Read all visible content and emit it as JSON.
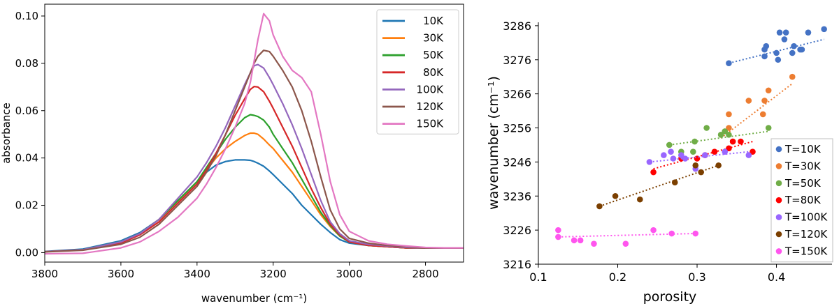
{
  "chart_data": [
    {
      "type": "line",
      "xlabel": "wavenumber (cm⁻¹)",
      "ylabel": "absorbance",
      "xlim": [
        3800,
        2700
      ],
      "ylim": [
        -0.004,
        0.105
      ],
      "x_reversed": true,
      "xticks": [
        3800,
        3600,
        3400,
        3200,
        3000,
        2800
      ],
      "yticks": [
        0.0,
        0.02,
        0.04,
        0.06,
        0.08,
        0.1
      ],
      "ytick_labels": [
        "0.00",
        "0.02",
        "0.04",
        "0.06",
        "0.08",
        "0.10"
      ],
      "legend_position": "top-right",
      "x": [
        3800,
        3700,
        3600,
        3550,
        3500,
        3450,
        3400,
        3375,
        3350,
        3325,
        3300,
        3275,
        3260,
        3250,
        3240,
        3225,
        3210,
        3200,
        3175,
        3150,
        3125,
        3100,
        3075,
        3050,
        3025,
        3000,
        2950,
        2900,
        2850,
        2800,
        2750,
        2700
      ],
      "series": [
        {
          "name": "10K",
          "color": "#1f77b4",
          "values": [
            0.0005,
            0.0015,
            0.005,
            0.0085,
            0.014,
            0.022,
            0.03,
            0.034,
            0.037,
            0.0385,
            0.0392,
            0.0392,
            0.039,
            0.0385,
            0.0378,
            0.0365,
            0.0345,
            0.033,
            0.029,
            0.025,
            0.02,
            0.016,
            0.012,
            0.0085,
            0.0055,
            0.004,
            0.003,
            0.0025,
            0.002,
            0.002,
            0.002,
            0.002
          ]
        },
        {
          "name": "30K",
          "color": "#ff7f0e",
          "values": [
            0.0004,
            0.0012,
            0.0045,
            0.008,
            0.014,
            0.022,
            0.03,
            0.035,
            0.04,
            0.044,
            0.047,
            0.0495,
            0.0505,
            0.0505,
            0.05,
            0.048,
            0.0455,
            0.044,
            0.039,
            0.034,
            0.028,
            0.022,
            0.016,
            0.011,
            0.007,
            0.0045,
            0.003,
            0.0025,
            0.002,
            0.002,
            0.002,
            0.002
          ]
        },
        {
          "name": "50K",
          "color": "#2ca02c",
          "values": [
            0.0004,
            0.0012,
            0.0045,
            0.008,
            0.014,
            0.022,
            0.03,
            0.036,
            0.042,
            0.048,
            0.053,
            0.057,
            0.0583,
            0.058,
            0.0575,
            0.056,
            0.053,
            0.05,
            0.044,
            0.038,
            0.031,
            0.024,
            0.017,
            0.0115,
            0.007,
            0.0045,
            0.003,
            0.0025,
            0.002,
            0.002,
            0.002,
            0.002
          ]
        },
        {
          "name": "80K",
          "color": "#d62728",
          "values": [
            0.0004,
            0.0012,
            0.004,
            0.0075,
            0.013,
            0.021,
            0.029,
            0.035,
            0.042,
            0.05,
            0.058,
            0.065,
            0.069,
            0.0702,
            0.07,
            0.068,
            0.064,
            0.061,
            0.053,
            0.045,
            0.036,
            0.027,
            0.019,
            0.012,
            0.0075,
            0.0045,
            0.003,
            0.0025,
            0.002,
            0.002,
            0.002,
            0.002
          ]
        },
        {
          "name": "100K",
          "color": "#9467bd",
          "values": [
            0.0004,
            0.0012,
            0.0045,
            0.008,
            0.014,
            0.023,
            0.032,
            0.038,
            0.045,
            0.053,
            0.062,
            0.071,
            0.076,
            0.079,
            0.0795,
            0.078,
            0.074,
            0.071,
            0.063,
            0.054,
            0.044,
            0.033,
            0.022,
            0.013,
            0.008,
            0.005,
            0.0035,
            0.0028,
            0.0022,
            0.002,
            0.002,
            0.002
          ]
        },
        {
          "name": "120K",
          "color": "#8c564b",
          "values": [
            0.0003,
            0.001,
            0.0035,
            0.0065,
            0.012,
            0.02,
            0.028,
            0.034,
            0.041,
            0.05,
            0.06,
            0.07,
            0.076,
            0.08,
            0.083,
            0.0855,
            0.085,
            0.083,
            0.077,
            0.07,
            0.06,
            0.047,
            0.032,
            0.018,
            0.01,
            0.006,
            0.004,
            0.003,
            0.0025,
            0.002,
            0.002,
            0.002
          ]
        },
        {
          "name": "150K",
          "color": "#e377c2",
          "values": [
            -0.0005,
            -0.0003,
            0.002,
            0.0045,
            0.009,
            0.015,
            0.023,
            0.029,
            0.036,
            0.044,
            0.053,
            0.063,
            0.072,
            0.081,
            0.09,
            0.101,
            0.098,
            0.092,
            0.083,
            0.077,
            0.074,
            0.068,
            0.05,
            0.03,
            0.016,
            0.009,
            0.005,
            0.0035,
            0.0028,
            0.0022,
            0.002,
            0.002
          ]
        }
      ]
    },
    {
      "type": "scatter",
      "xlabel": "porosity",
      "ylabel": "wavenumber (cm⁻¹)",
      "xlim": [
        0.1,
        0.47
      ],
      "ylim": [
        3216,
        3287
      ],
      "xticks": [
        0.1,
        0.2,
        0.3,
        0.4
      ],
      "xtick_labels": [
        "0.1",
        "0.2",
        "0.3",
        "0.4"
      ],
      "yticks": [
        3216,
        3226,
        3236,
        3246,
        3256,
        3266,
        3276,
        3286
      ],
      "legend_position": "lower-right",
      "series": [
        {
          "name": "T=10K",
          "color": "#4472c4",
          "points": [
            [
              0.34,
              3275
            ],
            [
              0.385,
              3277
            ],
            [
              0.385,
              3279
            ],
            [
              0.387,
              3280
            ],
            [
              0.4,
              3278
            ],
            [
              0.402,
              3276
            ],
            [
              0.404,
              3284
            ],
            [
              0.41,
              3282
            ],
            [
              0.412,
              3284
            ],
            [
              0.42,
              3278
            ],
            [
              0.422,
              3280
            ],
            [
              0.43,
              3279
            ],
            [
              0.432,
              3279
            ],
            [
              0.44,
              3284
            ],
            [
              0.46,
              3285
            ]
          ],
          "fit": [
            [
              0.34,
              3275
            ],
            [
              0.46,
              3282
            ]
          ]
        },
        {
          "name": "T=30K",
          "color": "#ed7d31",
          "points": [
            [
              0.34,
              3260
            ],
            [
              0.34,
              3256
            ],
            [
              0.365,
              3264
            ],
            [
              0.383,
              3260
            ],
            [
              0.385,
              3264
            ],
            [
              0.39,
              3267
            ],
            [
              0.42,
              3271
            ]
          ],
          "fit": [
            [
              0.33,
              3253
            ],
            [
              0.42,
              3269
            ]
          ]
        },
        {
          "name": "T=50K",
          "color": "#70ad47",
          "points": [
            [
              0.265,
              3251
            ],
            [
              0.28,
              3249
            ],
            [
              0.295,
              3249
            ],
            [
              0.297,
              3252
            ],
            [
              0.312,
              3256
            ],
            [
              0.33,
              3254
            ],
            [
              0.335,
              3255
            ],
            [
              0.34,
              3254
            ],
            [
              0.345,
              3252
            ],
            [
              0.39,
              3256
            ]
          ],
          "fit": [
            [
              0.265,
              3251
            ],
            [
              0.39,
              3255
            ]
          ]
        },
        {
          "name": "T=80K",
          "color": "#ff0000",
          "points": [
            [
              0.245,
              3243
            ],
            [
              0.28,
              3247
            ],
            [
              0.3,
              3247
            ],
            [
              0.31,
              3248
            ],
            [
              0.322,
              3249
            ],
            [
              0.34,
              3250
            ],
            [
              0.345,
              3252
            ],
            [
              0.355,
              3252
            ],
            [
              0.37,
              3249
            ]
          ],
          "fit": [
            [
              0.245,
              3244
            ],
            [
              0.37,
              3252
            ]
          ]
        },
        {
          "name": "T=100K",
          "color": "#9966ff",
          "points": [
            [
              0.24,
              3246
            ],
            [
              0.258,
              3248
            ],
            [
              0.267,
              3249
            ],
            [
              0.27,
              3247
            ],
            [
              0.28,
              3248
            ],
            [
              0.285,
              3247
            ],
            [
              0.298,
              3244
            ],
            [
              0.31,
              3248
            ],
            [
              0.335,
              3249
            ],
            [
              0.365,
              3248
            ]
          ],
          "fit": [
            [
              0.24,
              3246
            ],
            [
              0.365,
              3249
            ]
          ]
        },
        {
          "name": "T=120K",
          "color": "#7b3f00",
          "points": [
            [
              0.177,
              3233
            ],
            [
              0.197,
              3236
            ],
            [
              0.228,
              3235
            ],
            [
              0.272,
              3240
            ],
            [
              0.298,
              3245
            ],
            [
              0.305,
              3243
            ],
            [
              0.327,
              3245
            ]
          ],
          "fit": [
            [
              0.177,
              3233
            ],
            [
              0.327,
              3245
            ]
          ]
        },
        {
          "name": "T=150K",
          "color": "#ff55ee",
          "points": [
            [
              0.125,
              3226
            ],
            [
              0.125,
              3224
            ],
            [
              0.145,
              3223
            ],
            [
              0.153,
              3223
            ],
            [
              0.17,
              3222
            ],
            [
              0.21,
              3222
            ],
            [
              0.245,
              3226
            ],
            [
              0.268,
              3225
            ],
            [
              0.298,
              3225
            ]
          ],
          "fit": [
            [
              0.125,
              3224
            ],
            [
              0.298,
              3225
            ]
          ]
        }
      ]
    }
  ]
}
